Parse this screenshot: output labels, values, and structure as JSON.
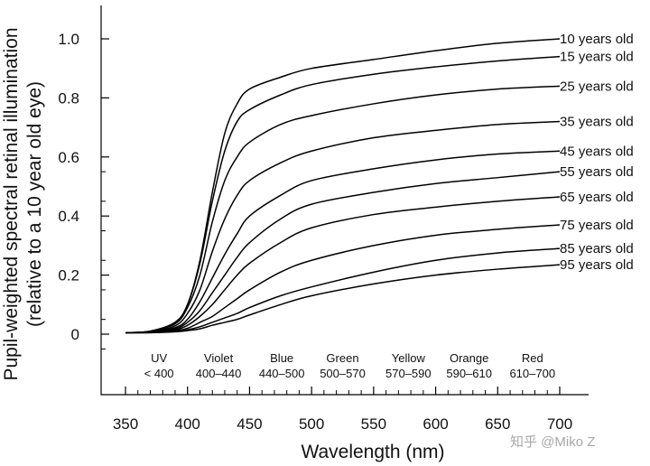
{
  "chart_data": {
    "type": "line",
    "title": "",
    "ylabel_line1": "Pupil-weighted spectral retinal illumination",
    "ylabel_line2": "(relative to a 10 year old eye)",
    "xlabel": "Wavelength (nm)",
    "xlim": [
      350,
      700
    ],
    "ylim": [
      -0.2,
      1.1
    ],
    "x_ticks": [
      350,
      400,
      450,
      500,
      550,
      600,
      650,
      700
    ],
    "y_ticks": [
      {
        "value": 0,
        "label": "0"
      },
      {
        "value": 0.2,
        "label": "0.2"
      },
      {
        "value": 0.4,
        "label": "0.4"
      },
      {
        "value": 0.6,
        "label": "0.6"
      },
      {
        "value": 0.8,
        "label": "0.8"
      },
      {
        "value": 1.0,
        "label": "1.0"
      }
    ],
    "grid": false,
    "bands": [
      {
        "name": "UV",
        "range": "< 400",
        "center": 377
      },
      {
        "name": "Violet",
        "range": "400–440",
        "center": 425
      },
      {
        "name": "Blue",
        "range": "440–500",
        "center": 476
      },
      {
        "name": "Green",
        "range": "500–570",
        "center": 525
      },
      {
        "name": "Yellow",
        "range": "570–590",
        "center": 578
      },
      {
        "name": "Orange",
        "range": "590–610",
        "center": 627
      },
      {
        "name": "Red",
        "range": "610–700",
        "center": 678
      }
    ],
    "x": [
      350,
      370,
      390,
      400,
      410,
      420,
      430,
      440,
      450,
      475,
      500,
      550,
      600,
      650,
      700
    ],
    "series": [
      {
        "name": "10 years old",
        "values": [
          0.005,
          0.01,
          0.04,
          0.1,
          0.25,
          0.48,
          0.68,
          0.78,
          0.83,
          0.87,
          0.9,
          0.93,
          0.96,
          0.985,
          1.0
        ]
      },
      {
        "name": "15 years old",
        "values": [
          0.005,
          0.01,
          0.04,
          0.1,
          0.24,
          0.45,
          0.62,
          0.72,
          0.76,
          0.81,
          0.845,
          0.88,
          0.905,
          0.925,
          0.94
        ]
      },
      {
        "name": "25 years old",
        "values": [
          0.005,
          0.01,
          0.035,
          0.09,
          0.2,
          0.38,
          0.52,
          0.6,
          0.65,
          0.71,
          0.74,
          0.78,
          0.81,
          0.83,
          0.84
        ]
      },
      {
        "name": "35 years old",
        "values": [
          0.005,
          0.008,
          0.028,
          0.07,
          0.15,
          0.28,
          0.39,
          0.47,
          0.52,
          0.58,
          0.62,
          0.665,
          0.69,
          0.71,
          0.72
        ]
      },
      {
        "name": "45 years old",
        "values": [
          0.005,
          0.008,
          0.022,
          0.05,
          0.11,
          0.19,
          0.27,
          0.34,
          0.4,
          0.47,
          0.52,
          0.56,
          0.59,
          0.61,
          0.62
        ]
      },
      {
        "name": "55 years old",
        "values": [
          0.005,
          0.007,
          0.018,
          0.04,
          0.08,
          0.14,
          0.2,
          0.26,
          0.31,
          0.39,
          0.44,
          0.48,
          0.51,
          0.53,
          0.55
        ]
      },
      {
        "name": "65 years old",
        "values": [
          0.005,
          0.006,
          0.015,
          0.03,
          0.06,
          0.1,
          0.15,
          0.2,
          0.24,
          0.31,
          0.36,
          0.405,
          0.43,
          0.45,
          0.465
        ]
      },
      {
        "name": "75 years old",
        "values": [
          0.005,
          0.006,
          0.012,
          0.02,
          0.04,
          0.06,
          0.09,
          0.12,
          0.15,
          0.21,
          0.25,
          0.3,
          0.335,
          0.355,
          0.37
        ]
      },
      {
        "name": "85 years old",
        "values": [
          0.005,
          0.005,
          0.01,
          0.015,
          0.025,
          0.04,
          0.055,
          0.07,
          0.09,
          0.13,
          0.16,
          0.21,
          0.25,
          0.275,
          0.29
        ]
      },
      {
        "name": "95 years old",
        "values": [
          0.005,
          0.005,
          0.008,
          0.012,
          0.018,
          0.03,
          0.04,
          0.05,
          0.065,
          0.1,
          0.13,
          0.17,
          0.2,
          0.22,
          0.235
        ]
      }
    ]
  },
  "watermark": "知乎 @Miko Z",
  "colors": {
    "line": "#000000",
    "text": "#111111",
    "watermark": "#a8a8a8"
  }
}
